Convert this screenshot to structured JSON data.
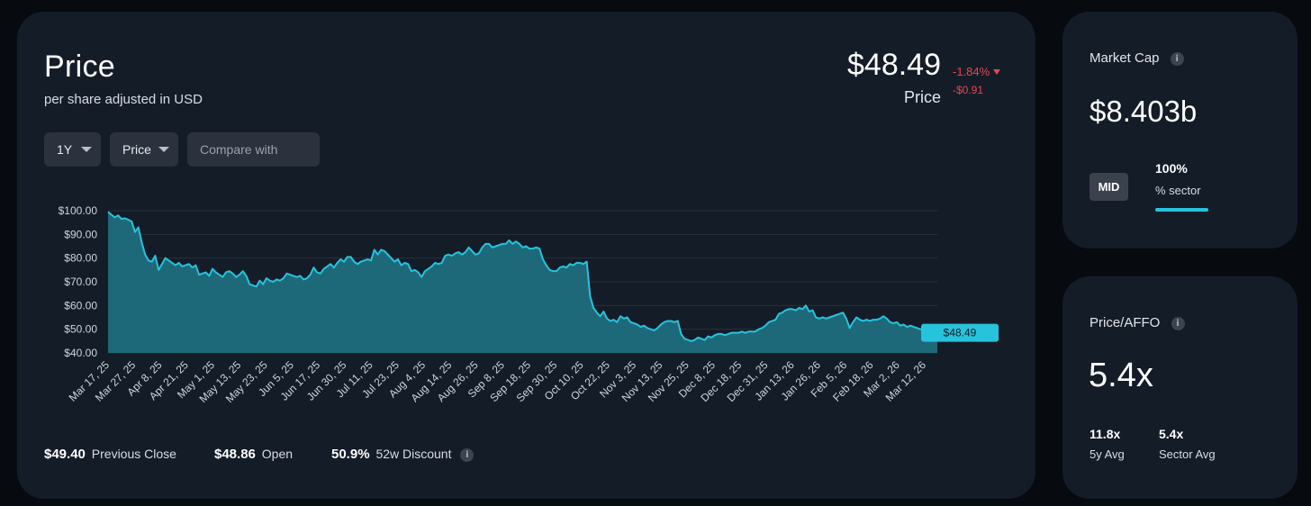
{
  "price_card": {
    "title": "Price",
    "subtitle": "per share adjusted in USD",
    "current_price": "$48.49",
    "current_label": "Price",
    "change_pct": "-1.84%",
    "change_abs": "-$0.91",
    "controls": {
      "range": "1Y",
      "metric": "Price",
      "compare_placeholder": "Compare with"
    },
    "stats": {
      "prev_close_value": "$49.40",
      "prev_close_label": "Previous Close",
      "open_value": "$48.86",
      "open_label": "Open",
      "discount_value": "50.9%",
      "discount_label": "52w Discount"
    }
  },
  "market_cap_card": {
    "label": "Market Cap",
    "value": "$8.403b",
    "badge": "MID",
    "sector_pct": "100%",
    "sector_label": "% sector",
    "sector_fraction": 1.0
  },
  "affo_card": {
    "label": "Price/AFFO",
    "value": "5.4x",
    "avg5y_value": "11.8x",
    "avg5y_label": "5y Avg",
    "sector_avg_value": "5.4x",
    "sector_avg_label": "Sector Avg"
  },
  "colors": {
    "accent": "#27c3dc",
    "area_fill": "#1d6e7e",
    "negative": "#e5484d",
    "card": "#141c28",
    "background": "#070a0f"
  },
  "chart_data": {
    "type": "area",
    "title": "",
    "xlabel": "",
    "ylabel": "",
    "ylim": [
      40,
      100
    ],
    "y_ticks": [
      "$100.00",
      "$90.00",
      "$80.00",
      "$70.00",
      "$60.00",
      "$50.00",
      "$40.00"
    ],
    "x_tick_labels": [
      "Mar 17, 25",
      "Mar 27, 25",
      "Apr 8, 25",
      "Apr 21, 25",
      "May 1, 25",
      "May 13, 25",
      "May 23, 25",
      "Jun 5, 25",
      "Jun 17, 25",
      "Jun 30, 25",
      "Jul 11, 25",
      "Jul 23, 25",
      "Aug 4, 25",
      "Aug 14, 25",
      "Aug 26, 25",
      "Sep 8, 25",
      "Sep 18, 25",
      "Sep 30, 25",
      "Oct 10, 25",
      "Oct 22, 25",
      "Nov 3, 25",
      "Nov 13, 25",
      "Nov 25, 25",
      "Dec 8, 25",
      "Dec 18, 25",
      "Dec 31, 25",
      "Jan 13, 26",
      "Jan 26, 26",
      "Feb 5, 26",
      "Feb 18, 26",
      "Mar 2, 26",
      "Mar 12, 26"
    ],
    "grid": true,
    "last_value_label": "$48.49",
    "series": [
      {
        "values": [
          99.5,
          98.3,
          97.2,
          98.0,
          96.5,
          96.8,
          96.2,
          95.5,
          91.0,
          93.0,
          86.5,
          81.5,
          79.0,
          78.5,
          81.0,
          75.0,
          77.5,
          80.0,
          79.0,
          78.0,
          77.0,
          78.0,
          76.5,
          77.0,
          77.5,
          76.0,
          77.0,
          73.0,
          73.5,
          74.0,
          72.5,
          75.5,
          74.0,
          73.0,
          72.0,
          74.0,
          74.5,
          73.5,
          72.0,
          73.0,
          74.5,
          72.5,
          69.0,
          68.5,
          68.0,
          70.5,
          69.0,
          71.5,
          70.5,
          70.0,
          71.0,
          70.5,
          71.5,
          73.5,
          73.0,
          72.5,
          72.0,
          72.5,
          71.0,
          71.5,
          73.0,
          76.0,
          74.0,
          73.5,
          75.5,
          76.5,
          77.5,
          76.0,
          78.0,
          79.5,
          78.5,
          80.5,
          80.5,
          78.5,
          77.5,
          78.5,
          79.0,
          79.5,
          79.0,
          83.5,
          81.5,
          83.5,
          83.0,
          81.5,
          80.0,
          78.5,
          79.5,
          77.0,
          78.0,
          77.5,
          74.5,
          75.0,
          74.0,
          72.0,
          74.5,
          75.5,
          76.5,
          78.0,
          77.5,
          78.0,
          81.0,
          81.5,
          81.0,
          82.0,
          82.5,
          81.5,
          82.5,
          84.5,
          83.0,
          81.5,
          82.0,
          84.5,
          86.0,
          86.0,
          84.5,
          85.0,
          85.5,
          86.0,
          86.0,
          87.5,
          86.0,
          87.0,
          86.0,
          84.5,
          85.0,
          84.0,
          84.0,
          84.5,
          84.0,
          79.5,
          77.0,
          75.0,
          74.5,
          74.5,
          76.0,
          76.5,
          76.0,
          77.5,
          77.0,
          78.0,
          78.0,
          77.5,
          78.5,
          64.0,
          59.0,
          57.0,
          55.5,
          57.5,
          54.5,
          53.5,
          54.0,
          53.0,
          55.5,
          54.5,
          55.0,
          53.0,
          52.5,
          52.0,
          51.0,
          51.5,
          50.5,
          50.0,
          49.5,
          50.5,
          52.0,
          53.0,
          53.5,
          53.5,
          53.0,
          53.5,
          48.0,
          46.0,
          45.5,
          45.0,
          45.5,
          46.5,
          46.0,
          45.5,
          47.0,
          46.5,
          47.5,
          48.0,
          48.0,
          47.5,
          48.0,
          48.5,
          48.5,
          48.5,
          49.0,
          48.5,
          49.0,
          49.0,
          49.0,
          50.0,
          50.5,
          51.5,
          53.0,
          53.5,
          54.0,
          56.5,
          57.0,
          58.0,
          58.5,
          58.5,
          58.0,
          59.0,
          58.5,
          60.0,
          57.5,
          58.0,
          55.0,
          54.5,
          55.0,
          54.5,
          55.0,
          55.5,
          56.0,
          56.5,
          57.0,
          54.5,
          50.5,
          53.0,
          55.0,
          54.0,
          53.5,
          54.0,
          53.5,
          54.0,
          54.0,
          54.5,
          55.5,
          54.5,
          53.0,
          52.5,
          53.0,
          51.5,
          52.0,
          51.0,
          51.5,
          51.0,
          50.5,
          50.0,
          50.5,
          49.5,
          48.0,
          48.5,
          48.49
        ]
      }
    ]
  }
}
